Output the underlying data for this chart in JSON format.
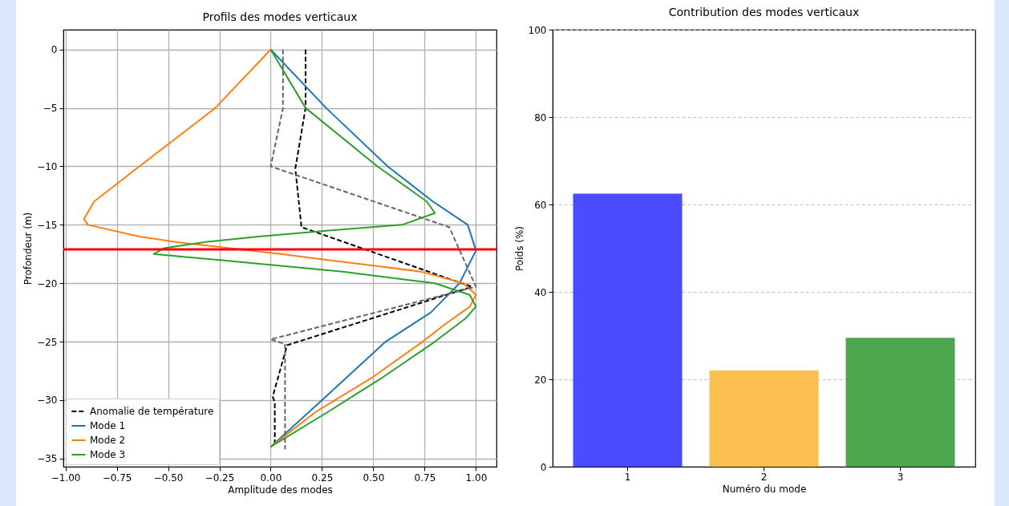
{
  "chart_data": [
    {
      "type": "line",
      "title": "Profils des modes verticaux",
      "xlabel": "Amplitude des modes",
      "ylabel": "Profondeur (m)",
      "xlim": [
        -1.01,
        1.1
      ],
      "ylim": [
        -35.7,
        1.7
      ],
      "xticks": [
        {
          "value": -1,
          "label": "−1.00"
        },
        {
          "value": -0.75,
          "label": "−0.75"
        },
        {
          "value": -0.5,
          "label": "−0.50"
        },
        {
          "value": -0.25,
          "label": "−0.25"
        },
        {
          "value": 0,
          "label": "0.00"
        },
        {
          "value": 0.25,
          "label": "0.25"
        },
        {
          "value": 0.5,
          "label": "0.50"
        },
        {
          "value": 0.75,
          "label": "0.75"
        },
        {
          "value": 1,
          "label": "1.00"
        }
      ],
      "yticks": [
        {
          "value": -35,
          "label": "−35"
        },
        {
          "value": -30,
          "label": "−30"
        },
        {
          "value": -25,
          "label": "−25"
        },
        {
          "value": -20,
          "label": "−20"
        },
        {
          "value": -15,
          "label": "−15"
        },
        {
          "value": -10,
          "label": "−10"
        },
        {
          "value": -5,
          "label": "−5"
        },
        0
      ],
      "grid": true,
      "legend": "bottom left",
      "series": [
        {
          "name": "Anomalie de température",
          "color": "#000000",
          "line_style": "dashed",
          "x": [
            0.17,
            0.17,
            0.12,
            0.15,
            0.98,
            0.08,
            0.01,
            0.02,
            0.02
          ],
          "values": [
            0,
            -5,
            -10.2,
            -15.2,
            -20.3,
            -25.3,
            -29.7,
            -30.2,
            -33.9
          ]
        },
        {
          "color": "#666666",
          "line_style": "dashed",
          "x": [
            0.06,
            0.06,
            0.0,
            0.87,
            1.0,
            0.0,
            0.07,
            0.07
          ],
          "values": [
            0,
            -5,
            -10,
            -15.2,
            -20.3,
            -24.8,
            -25.2,
            -34.2
          ]
        },
        {
          "name": "Mode 1",
          "color": "#1f77b4",
          "line_style": "solid",
          "x": [
            0,
            0.27,
            0.57,
            0.79,
            0.96,
            1.0,
            0.92,
            0.78,
            0.56,
            0.25,
            0
          ],
          "values": [
            0,
            -5,
            -10,
            -13,
            -15,
            -17.2,
            -20,
            -22.5,
            -25,
            -30,
            -34
          ]
        },
        {
          "name": "Mode 2",
          "color": "#ff7f0e",
          "line_style": "solid",
          "x": [
            0,
            -0.27,
            -0.64,
            -0.86,
            -0.91,
            -0.89,
            -0.64,
            -0.45,
            -0.2,
            0.05,
            0.27,
            0.5,
            0.73,
            0.94,
            1.0,
            0.97,
            0.85,
            0.74,
            0.5,
            0.22,
            0
          ],
          "values": [
            0,
            -5,
            -10,
            -13,
            -14.5,
            -15,
            -16,
            -16.5,
            -17,
            -17.5,
            -18,
            -18.5,
            -19,
            -20,
            -21,
            -22,
            -23.5,
            -25,
            -28,
            -31,
            -34
          ]
        },
        {
          "name": "Mode 3",
          "color": "#2ca02c",
          "line_style": "solid",
          "x": [
            0,
            0.17,
            0.52,
            0.76,
            0.8,
            0.64,
            0.27,
            -0.06,
            -0.33,
            -0.52,
            -0.57,
            -0.26,
            0.35,
            0.8,
            0.97,
            1.0,
            0.95,
            0.8,
            0.55,
            0.28,
            0
          ],
          "values": [
            0,
            -5,
            -10,
            -13,
            -14,
            -15,
            -15.5,
            -16,
            -16.5,
            -17,
            -17.5,
            -18,
            -19,
            -20,
            -21,
            -22,
            -23,
            -25,
            -28,
            -31,
            -34
          ]
        }
      ],
      "ref_lines": [
        {
          "axis": "y",
          "value": -17.1,
          "color": "#ff0000"
        }
      ]
    },
    {
      "type": "bar",
      "title": "Contribution des modes verticaux",
      "xlabel": "Numéro du mode",
      "ylabel": "Poids (%)",
      "categories": [
        "1",
        "2",
        "3"
      ],
      "values": [
        62.5,
        22,
        29.5
      ],
      "colors": [
        "#4b4bff",
        "#fdbf4f",
        "#4ea64e"
      ],
      "ylim": [
        0,
        100
      ],
      "yticks": [
        0,
        20,
        40,
        60,
        80,
        100
      ],
      "grid": "y"
    }
  ]
}
